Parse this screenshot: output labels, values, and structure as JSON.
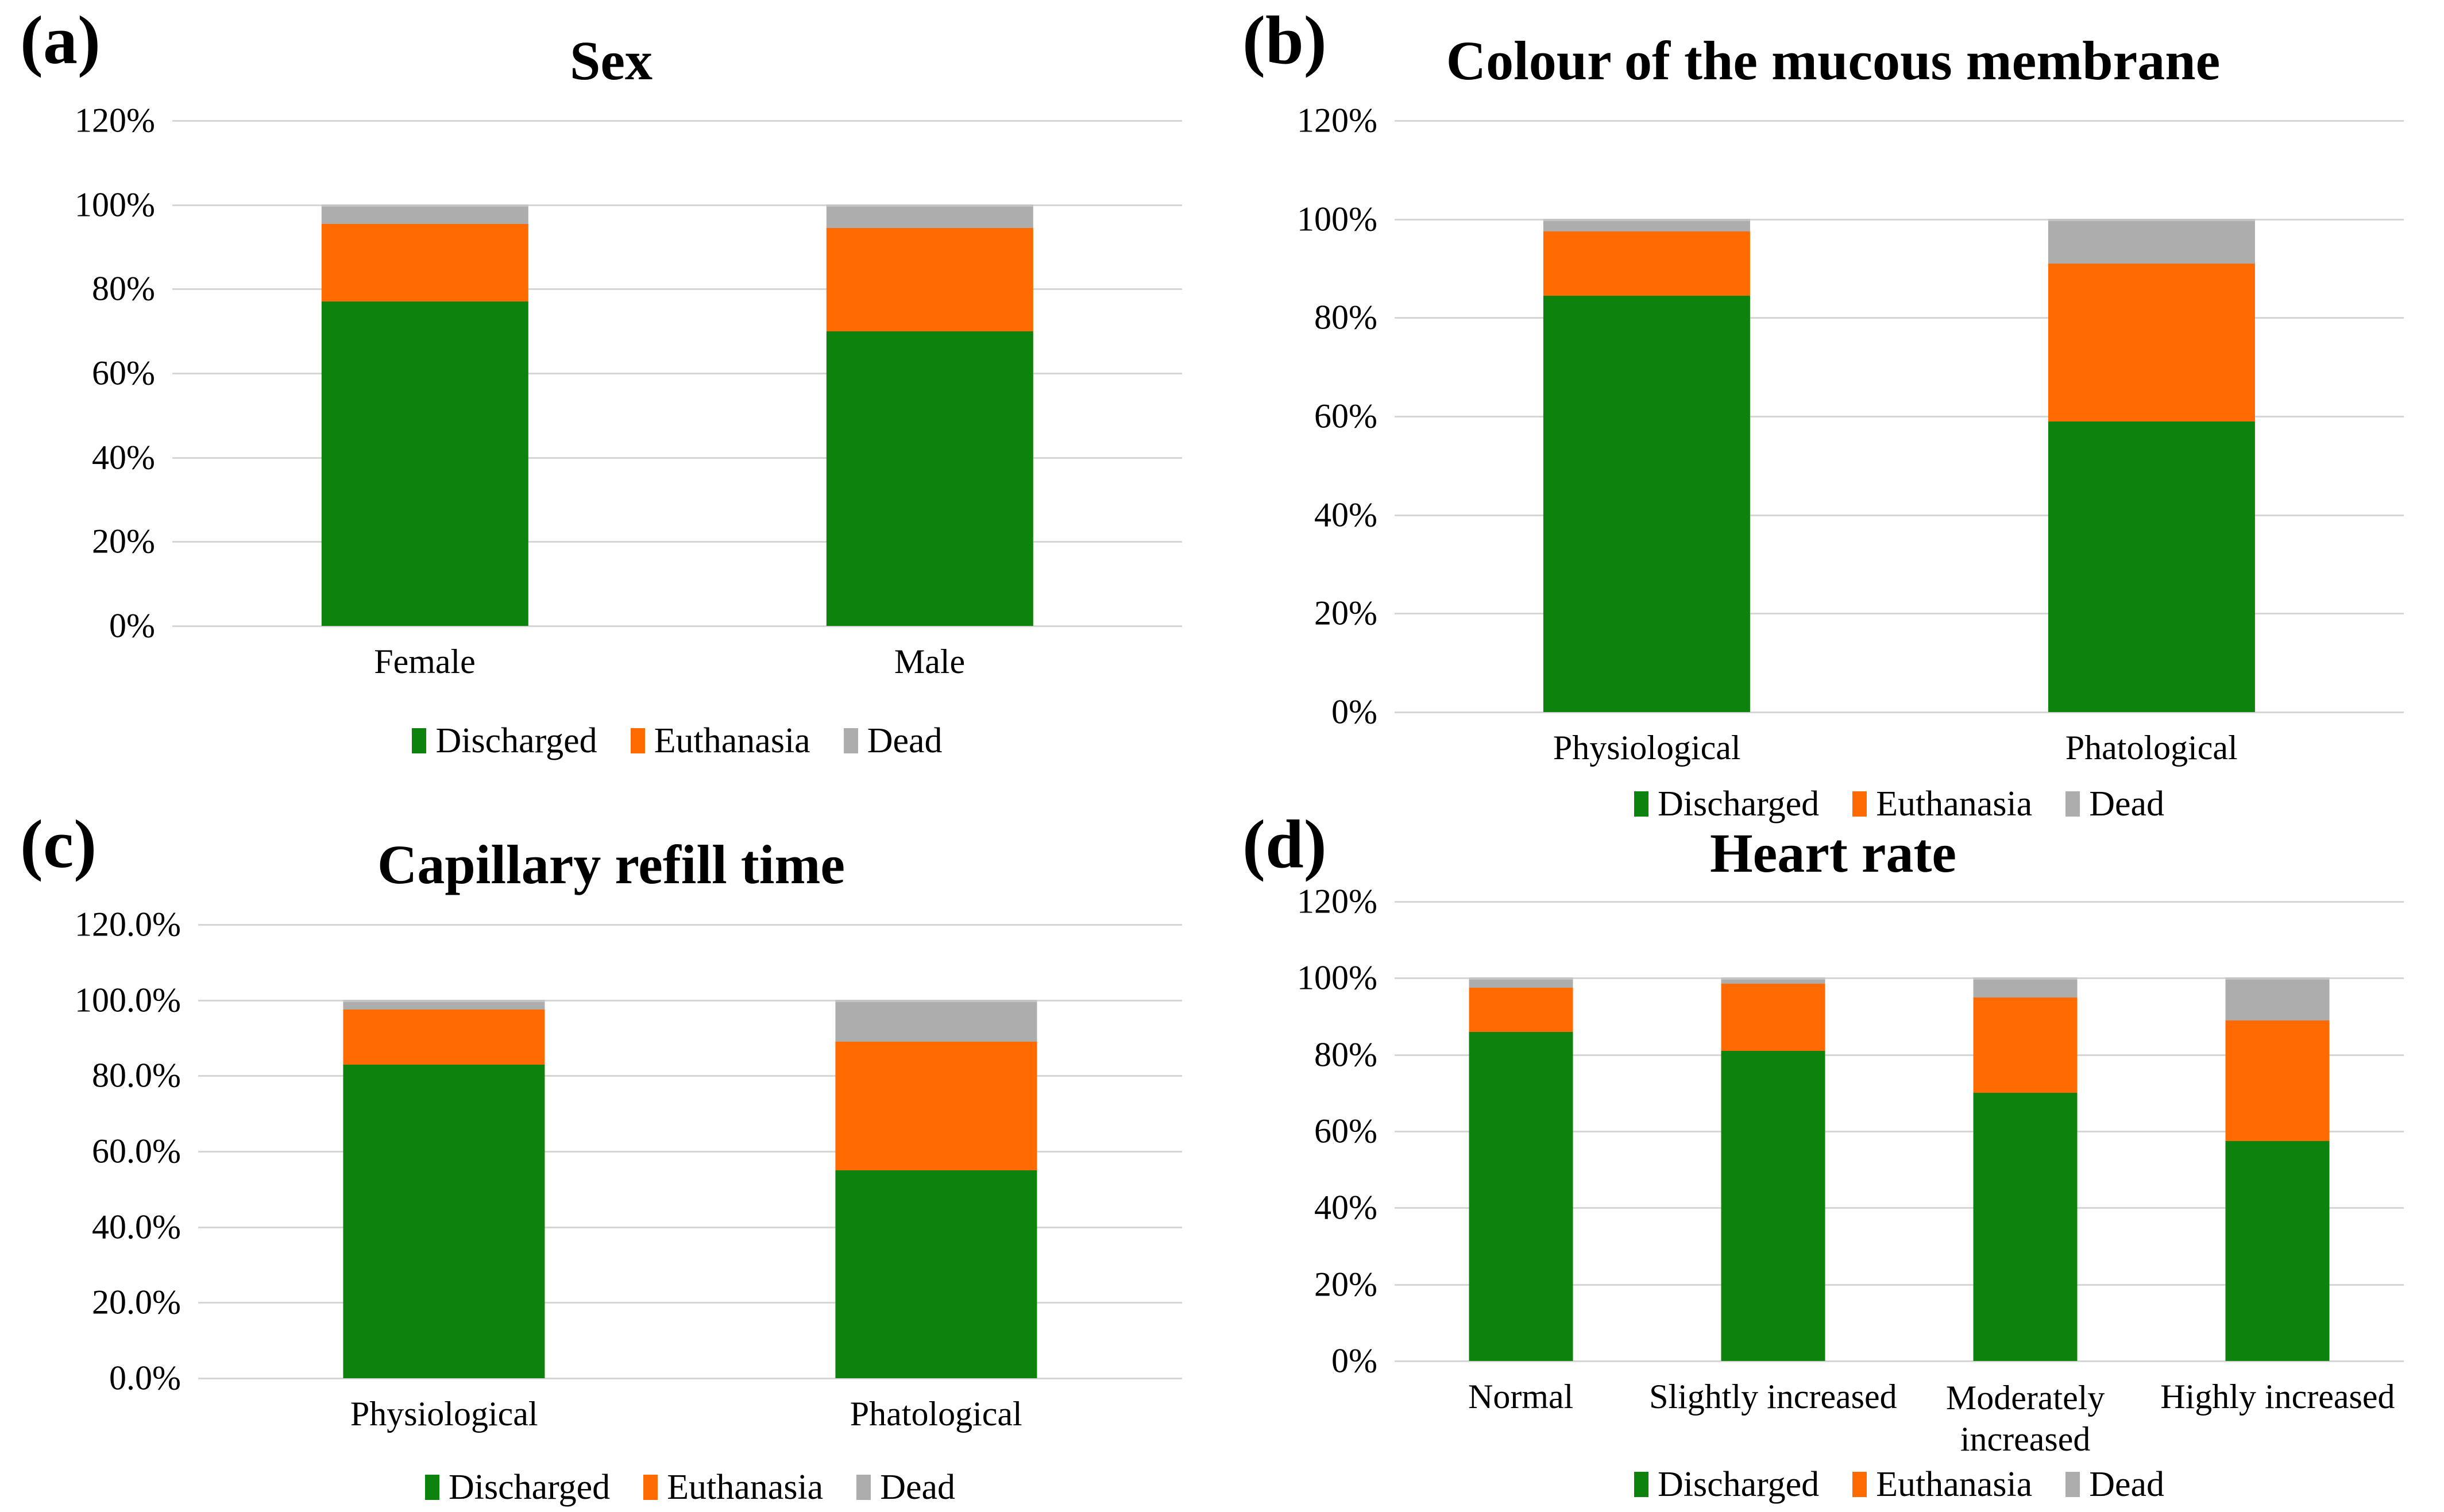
{
  "figure": {
    "background": "#ffffff",
    "gridline_color": "#d6d6d6",
    "text_color": "#000000",
    "series_colors": {
      "Discharged": "#0d830d",
      "Euthanasia": "#ff6b00",
      "Dead": "#adadad"
    }
  },
  "chart_data": [
    {
      "panel_label": "(a)",
      "type": "bar",
      "stacked": true,
      "title": "Sex",
      "categories": [
        "Female",
        "Male"
      ],
      "series": [
        {
          "name": "Discharged",
          "color": "#0d830d",
          "values": [
            77,
            70
          ]
        },
        {
          "name": "Euthanasia",
          "color": "#ff6b00",
          "values": [
            18.5,
            24.5
          ]
        },
        {
          "name": "Dead",
          "color": "#adadad",
          "values": [
            4.5,
            5.5
          ]
        }
      ],
      "xlabel": "",
      "ylabel": "",
      "ylim": [
        0,
        120
      ],
      "yticks": [
        {
          "value": 120,
          "label": "120%"
        },
        {
          "value": 100,
          "label": "100%"
        },
        {
          "value": 80,
          "label": "80%"
        },
        {
          "value": 60,
          "label": "60%"
        },
        {
          "value": 40,
          "label": "40%"
        },
        {
          "value": 20,
          "label": "20%"
        },
        {
          "value": 0,
          "label": "0%"
        }
      ],
      "grid": true,
      "legend": [
        "Discharged",
        "Euthanasia",
        "Dead"
      ],
      "legend_position": "bottom"
    },
    {
      "panel_label": "(b)",
      "type": "bar",
      "stacked": true,
      "title": "Colour of the mucous membrane",
      "categories": [
        "Physiological",
        "Phatological"
      ],
      "series": [
        {
          "name": "Discharged",
          "color": "#0d830d",
          "values": [
            84.5,
            59
          ]
        },
        {
          "name": "Euthanasia",
          "color": "#ff6b00",
          "values": [
            13,
            32
          ]
        },
        {
          "name": "Dead",
          "color": "#adadad",
          "values": [
            2.5,
            9
          ]
        }
      ],
      "xlabel": "",
      "ylabel": "",
      "ylim": [
        0,
        120
      ],
      "yticks": [
        {
          "value": 120,
          "label": "120%"
        },
        {
          "value": 100,
          "label": "100%"
        },
        {
          "value": 80,
          "label": "80%"
        },
        {
          "value": 60,
          "label": "60%"
        },
        {
          "value": 40,
          "label": "40%"
        },
        {
          "value": 20,
          "label": "20%"
        },
        {
          "value": 0,
          "label": "0%"
        }
      ],
      "grid": true,
      "legend": [
        "Discharged",
        "Euthanasia",
        "Dead"
      ],
      "legend_position": "bottom"
    },
    {
      "panel_label": "(c)",
      "type": "bar",
      "stacked": true,
      "title": "Capillary refill time",
      "categories": [
        "Physiological",
        "Phatological"
      ],
      "series": [
        {
          "name": "Discharged",
          "color": "#0d830d",
          "values": [
            83,
            55
          ]
        },
        {
          "name": "Euthanasia",
          "color": "#ff6b00",
          "values": [
            14.5,
            34
          ]
        },
        {
          "name": "Dead",
          "color": "#adadad",
          "values": [
            2.5,
            11
          ]
        }
      ],
      "xlabel": "",
      "ylabel": "",
      "ylim": [
        0,
        120
      ],
      "yticks": [
        {
          "value": 120,
          "label": "120.0%"
        },
        {
          "value": 100,
          "label": "100.0%"
        },
        {
          "value": 80,
          "label": "80.0%"
        },
        {
          "value": 60,
          "label": "60.0%"
        },
        {
          "value": 40,
          "label": "40.0%"
        },
        {
          "value": 20,
          "label": "20.0%"
        },
        {
          "value": 0,
          "label": "0.0%"
        }
      ],
      "grid": true,
      "legend": [
        "Discharged",
        "Euthanasia",
        "Dead"
      ],
      "legend_position": "bottom"
    },
    {
      "panel_label": "(d)",
      "type": "bar",
      "stacked": true,
      "title": "Heart rate",
      "categories": [
        "Normal",
        "Slightly increased",
        "Moderately increased",
        "Highly increased"
      ],
      "series": [
        {
          "name": "Discharged",
          "color": "#0d830d",
          "values": [
            86,
            81,
            70,
            57.5
          ]
        },
        {
          "name": "Euthanasia",
          "color": "#ff6b00",
          "values": [
            11.5,
            17.5,
            25,
            31.5
          ]
        },
        {
          "name": "Dead",
          "color": "#adadad",
          "values": [
            2.5,
            1.5,
            5,
            11
          ]
        }
      ],
      "xlabel": "",
      "ylabel": "",
      "ylim": [
        0,
        120
      ],
      "yticks": [
        {
          "value": 120,
          "label": "120%"
        },
        {
          "value": 100,
          "label": "100%"
        },
        {
          "value": 80,
          "label": "80%"
        },
        {
          "value": 60,
          "label": "60%"
        },
        {
          "value": 40,
          "label": "40%"
        },
        {
          "value": 20,
          "label": "20%"
        },
        {
          "value": 0,
          "label": "0%"
        }
      ],
      "grid": true,
      "legend": [
        "Discharged",
        "Euthanasia",
        "Dead"
      ],
      "legend_position": "bottom"
    }
  ]
}
